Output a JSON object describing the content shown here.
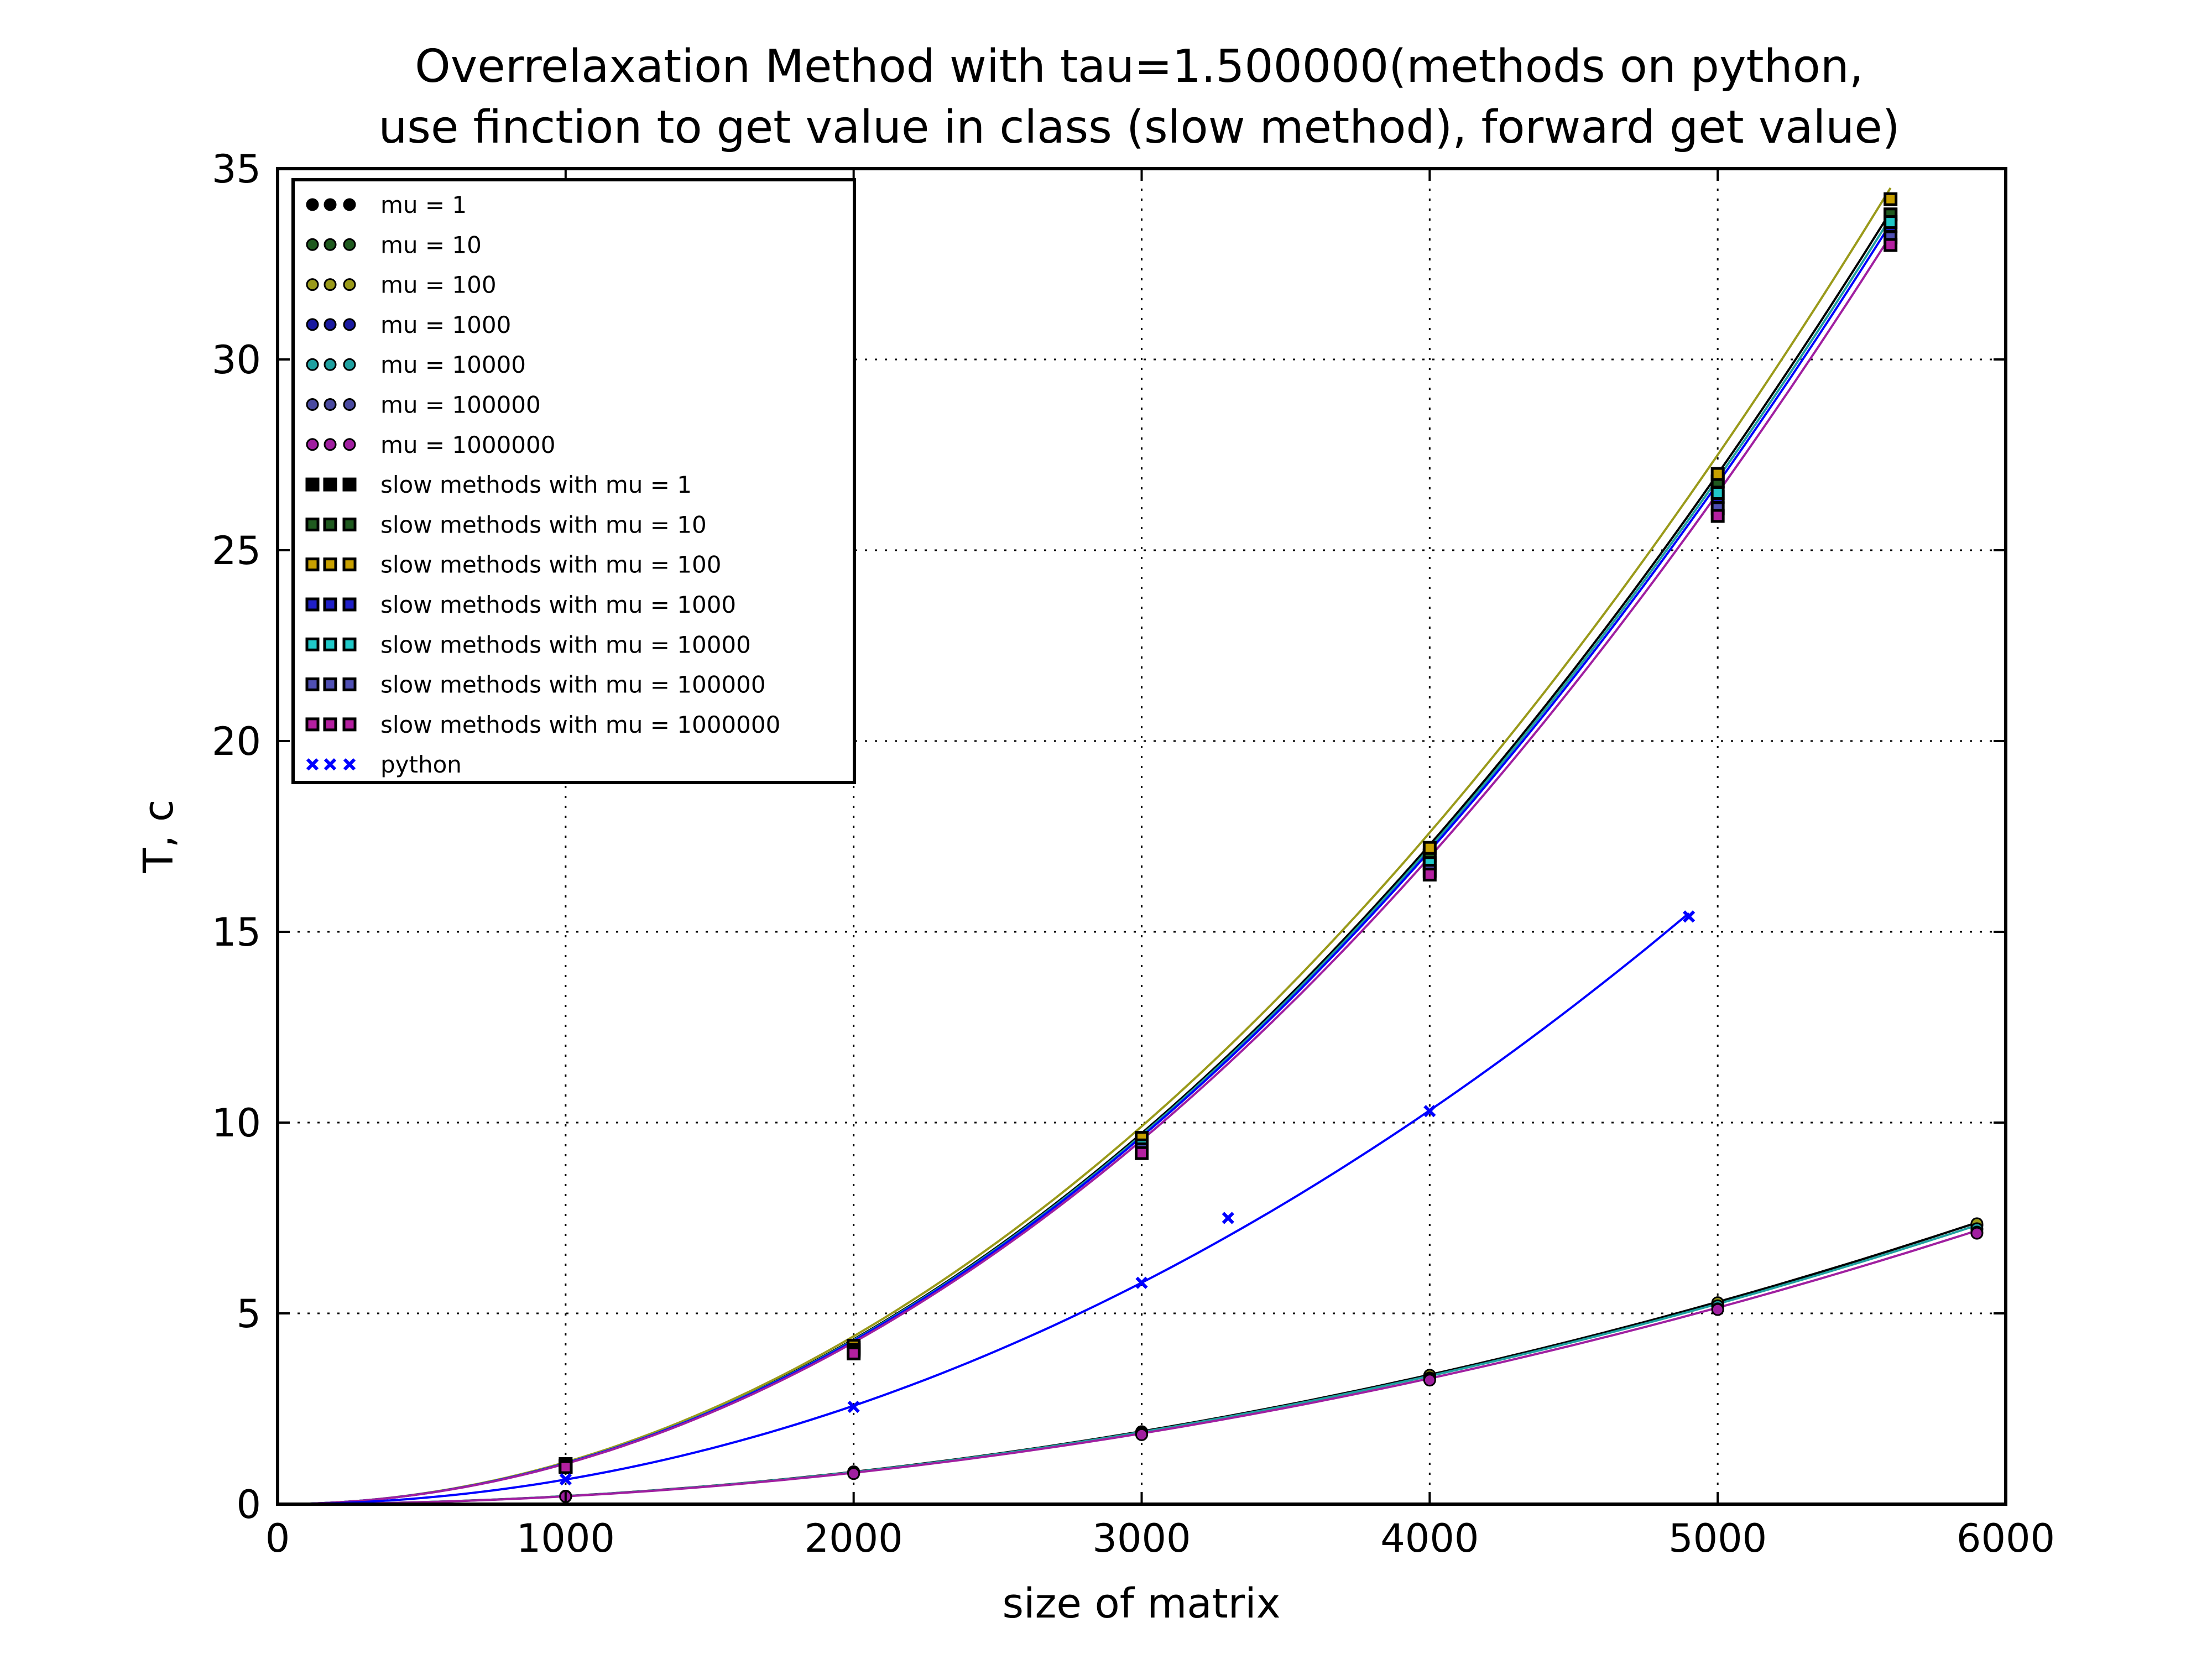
{
  "chart_data": {
    "type": "scatter",
    "title_lines": [
      "Overrelaxation Method with tau=1.500000(methods on python,",
      "use finction to get value in class (slow method), forward get value)"
    ],
    "xlabel": "size of matrix",
    "ylabel": "T, c",
    "xlim": [
      0,
      6000
    ],
    "ylim": [
      0,
      35
    ],
    "xticks": [
      "0",
      "1000",
      "2000",
      "3000",
      "4000",
      "5000",
      "6000"
    ],
    "yticks": [
      "0",
      "5",
      "10",
      "15",
      "20",
      "25",
      "30",
      "35"
    ],
    "grid": true,
    "legend_position": "top-left",
    "series": [
      {
        "name": "mu = 1",
        "marker": "circle",
        "color": "#000000",
        "x": [
          1000,
          2000,
          3000,
          4000,
          5000,
          5900
        ],
        "y": [
          0.21,
          0.84,
          1.89,
          3.36,
          5.25,
          7.31
        ]
      },
      {
        "name": "mu = 10",
        "marker": "circle",
        "color": "#1f5a1f",
        "x": [
          1000,
          2000,
          3000,
          4000,
          5000,
          5900
        ],
        "y": [
          0.21,
          0.84,
          1.89,
          3.36,
          5.25,
          7.31
        ]
      },
      {
        "name": "mu = 100",
        "marker": "circle",
        "color": "#9a9a1a",
        "x": [
          1000,
          2000,
          3000,
          4000,
          5000,
          5900
        ],
        "y": [
          0.21,
          0.85,
          1.9,
          3.38,
          5.28,
          7.35
        ]
      },
      {
        "name": "mu = 1000",
        "marker": "circle",
        "color": "#1a1aa0",
        "x": [
          1000,
          2000,
          3000,
          4000,
          5000,
          5900
        ],
        "y": [
          0.2,
          0.82,
          1.85,
          3.3,
          5.18,
          7.2
        ]
      },
      {
        "name": "mu = 10000",
        "marker": "circle",
        "color": "#1fa0a0",
        "x": [
          1000,
          2000,
          3000,
          4000,
          5000,
          5900
        ],
        "y": [
          0.2,
          0.82,
          1.86,
          3.31,
          5.2,
          7.22
        ]
      },
      {
        "name": "mu = 100000",
        "marker": "circle",
        "color": "#4a4aa0",
        "x": [
          1000,
          2000,
          3000,
          4000,
          5000,
          5900
        ],
        "y": [
          0.2,
          0.81,
          1.83,
          3.27,
          5.12,
          7.13
        ]
      },
      {
        "name": "mu = 1000000",
        "marker": "circle",
        "color": "#a01fa0",
        "x": [
          1000,
          2000,
          3000,
          4000,
          5000,
          5900
        ],
        "y": [
          0.2,
          0.8,
          1.82,
          3.25,
          5.1,
          7.1
        ]
      },
      {
        "name": "slow methods with mu = 1",
        "marker": "square",
        "color": "#000000",
        "x": [
          1000,
          2000,
          3000,
          4000,
          5000,
          5600
        ],
        "y": [
          1.0,
          4.1,
          9.5,
          17.0,
          26.8,
          33.8
        ]
      },
      {
        "name": "slow methods with mu = 10",
        "marker": "square",
        "color": "#1f5a1f",
        "x": [
          1000,
          2000,
          3000,
          4000,
          5000,
          5600
        ],
        "y": [
          1.0,
          4.1,
          9.5,
          17.0,
          26.8,
          33.8
        ]
      },
      {
        "name": "slow methods with mu = 100",
        "marker": "square",
        "color": "#c8a000",
        "x": [
          1000,
          2000,
          3000,
          4000,
          5000,
          5600
        ],
        "y": [
          1.05,
          4.15,
          9.6,
          17.2,
          27.0,
          34.2
        ]
      },
      {
        "name": "slow methods with mu = 1000",
        "marker": "square",
        "color": "#2020c8",
        "x": [
          1000,
          2000,
          3000,
          4000,
          5000,
          5600
        ],
        "y": [
          1.0,
          4.05,
          9.4,
          16.8,
          26.4,
          33.5
        ]
      },
      {
        "name": "slow methods with mu = 10000",
        "marker": "square",
        "color": "#20c8c8",
        "x": [
          1000,
          2000,
          3000,
          4000,
          5000,
          5600
        ],
        "y": [
          1.0,
          4.05,
          9.4,
          16.8,
          26.5,
          33.6
        ]
      },
      {
        "name": "slow methods with mu = 100000",
        "marker": "square",
        "color": "#5050b4",
        "x": [
          1000,
          2000,
          3000,
          4000,
          5000,
          5600
        ],
        "y": [
          0.98,
          4.0,
          9.3,
          16.6,
          26.1,
          33.2
        ]
      },
      {
        "name": "slow methods with mu = 1000000",
        "marker": "square",
        "color": "#b420a0",
        "x": [
          1000,
          2000,
          3000,
          4000,
          5000,
          5600
        ],
        "y": [
          0.97,
          3.95,
          9.2,
          16.5,
          25.9,
          33.0
        ]
      },
      {
        "name": "python",
        "marker": "x",
        "color": "#0000ff",
        "x": [
          1000,
          2000,
          3000,
          3300,
          4000,
          4900
        ],
        "y": [
          0.65,
          2.55,
          5.8,
          7.5,
          10.3,
          15.4
        ]
      }
    ],
    "fit_lines": [
      {
        "color": "#000000",
        "a": 1.08e-06,
        "b": 0
      },
      {
        "color": "#9a9a1a",
        "a": 1.1e-06,
        "b": 0
      },
      {
        "color": "#1fa0a0",
        "a": 1.075e-06,
        "b": 0
      },
      {
        "color": "#0000ff",
        "a": 1.07e-06,
        "b": 0
      },
      {
        "color": "#a01fa0",
        "a": 1.06e-06,
        "b": 0
      },
      {
        "color": "#000000",
        "a": 2.12e-07,
        "b": 0
      },
      {
        "color": "#1fa0a0",
        "a": 2.1e-07,
        "b": 0
      },
      {
        "color": "#a01fa0",
        "a": 2.06e-07,
        "b": 0
      },
      {
        "color": "#0000ff",
        "a": 6.45e-07,
        "b": 0
      }
    ]
  }
}
